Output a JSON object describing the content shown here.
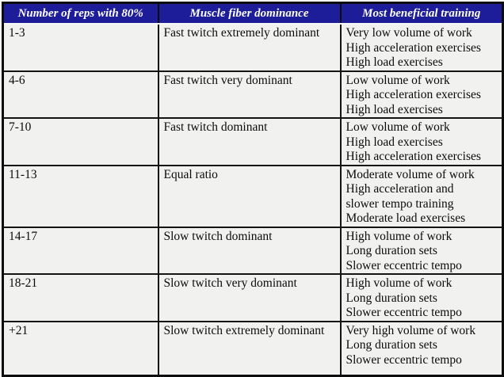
{
  "colors": {
    "header_bg": "#1d1d9a",
    "header_text": "#ffffff",
    "body_bg": "#f1f1ef",
    "grid_border": "#151515"
  },
  "table": {
    "columns": [
      "Number of reps with 80%",
      "Muscle fiber dominance",
      "Most beneficial training"
    ],
    "rows": [
      {
        "reps": "1-3",
        "dominance": "Fast twitch extremely dominant",
        "training": [
          "Very low volume of work",
          "High acceleration exercises",
          "High load exercises"
        ]
      },
      {
        "reps": "4-6",
        "dominance": "Fast twitch very dominant",
        "training": [
          "Low volume of work",
          "High acceleration exercises",
          "High load exercises"
        ]
      },
      {
        "reps": "7-10",
        "dominance": "Fast twitch dominant",
        "training": [
          "Low volume of work",
          "High load exercises",
          "High acceleration exercises"
        ]
      },
      {
        "reps": "11-13",
        "dominance": "Equal ratio",
        "training": [
          "Moderate volume of work",
          "High acceleration and",
          "slower tempo training",
          "Moderate load exercises"
        ]
      },
      {
        "reps": "14-17",
        "dominance": "Slow twitch dominant",
        "training": [
          "High volume of work",
          "Long duration sets",
          "Slower eccentric tempo"
        ]
      },
      {
        "reps": "18-21",
        "dominance": "Slow twitch very dominant",
        "training": [
          "High volume of work",
          "Long duration sets",
          "Slower eccentric tempo"
        ]
      },
      {
        "reps": "+21",
        "dominance": "Slow twitch extremely dominant",
        "training": [
          "Very high volume of work",
          "Long duration sets",
          "Slower eccentric tempo"
        ]
      }
    ]
  }
}
